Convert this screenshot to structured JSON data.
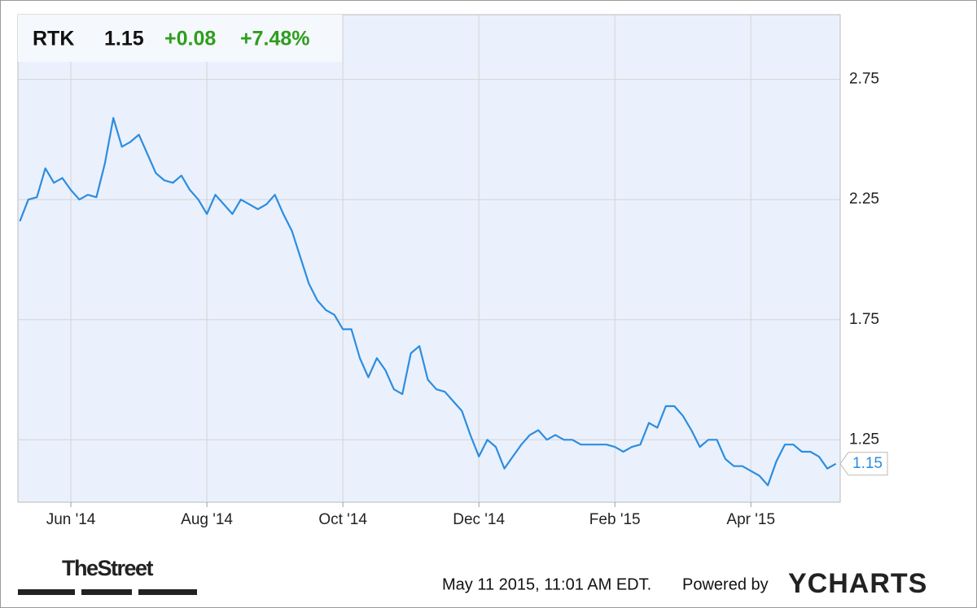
{
  "chart_data": {
    "type": "line",
    "ticker": "RTK",
    "price": "1.15",
    "change": "+0.08",
    "change_percent": "+7.48%",
    "categories": [
      null,
      null,
      null,
      null,
      null,
      null,
      "Jun '14",
      null,
      null,
      null,
      null,
      null,
      null,
      null,
      null,
      null,
      null,
      null,
      null,
      null,
      null,
      null,
      "Aug '14",
      null,
      null,
      null,
      null,
      null,
      null,
      null,
      null,
      null,
      null,
      null,
      null,
      null,
      null,
      null,
      "Oct '14",
      null,
      null,
      null,
      null,
      null,
      null,
      null,
      null,
      null,
      null,
      null,
      null,
      null,
      null,
      null,
      "Dec '14",
      null,
      null,
      null,
      null,
      null,
      null,
      null,
      null,
      null,
      null,
      null,
      null,
      null,
      null,
      null,
      "Feb '15",
      null,
      null,
      null,
      null,
      null,
      null,
      null,
      null,
      null,
      null,
      null,
      null,
      null,
      null,
      null,
      "Apr '15",
      null,
      null,
      null,
      null,
      null,
      null,
      null,
      null,
      null,
      null
    ],
    "series": [
      {
        "name": "RTK",
        "color": "#2d8de0",
        "values": [
          2.16,
          2.25,
          2.26,
          2.38,
          2.32,
          2.34,
          2.29,
          2.25,
          2.27,
          2.26,
          2.4,
          2.59,
          2.47,
          2.49,
          2.52,
          2.44,
          2.36,
          2.33,
          2.32,
          2.35,
          2.29,
          2.25,
          2.19,
          2.27,
          2.23,
          2.19,
          2.25,
          2.23,
          2.21,
          2.23,
          2.27,
          2.19,
          2.12,
          2.01,
          1.9,
          1.83,
          1.79,
          1.77,
          1.71,
          1.71,
          1.59,
          1.51,
          1.59,
          1.54,
          1.46,
          1.44,
          1.61,
          1.64,
          1.5,
          1.46,
          1.45,
          1.41,
          1.37,
          1.27,
          1.18,
          1.25,
          1.22,
          1.13,
          1.18,
          1.23,
          1.27,
          1.29,
          1.25,
          1.27,
          1.25,
          1.25,
          1.23,
          1.23,
          1.23,
          1.23,
          1.22,
          1.2,
          1.22,
          1.23,
          1.32,
          1.3,
          1.39,
          1.39,
          1.35,
          1.29,
          1.22,
          1.25,
          1.25,
          1.17,
          1.14,
          1.14,
          1.12,
          1.1,
          1.06,
          1.16,
          1.23,
          1.23,
          1.2,
          1.2,
          1.18,
          1.13,
          1.15
        ]
      }
    ],
    "ylim": [
      0.99,
      3.02
    ],
    "yticks": [
      1.25,
      1.75,
      2.25,
      2.75
    ],
    "grid": true,
    "plot_color": "#eaf1fc",
    "up_color": "#2e9e1e",
    "source": "TheStreet",
    "timestamp": "May 11 2015, 11:01 AM EDT.",
    "powered_by": "Powered by",
    "brand": "YCHARTS"
  }
}
